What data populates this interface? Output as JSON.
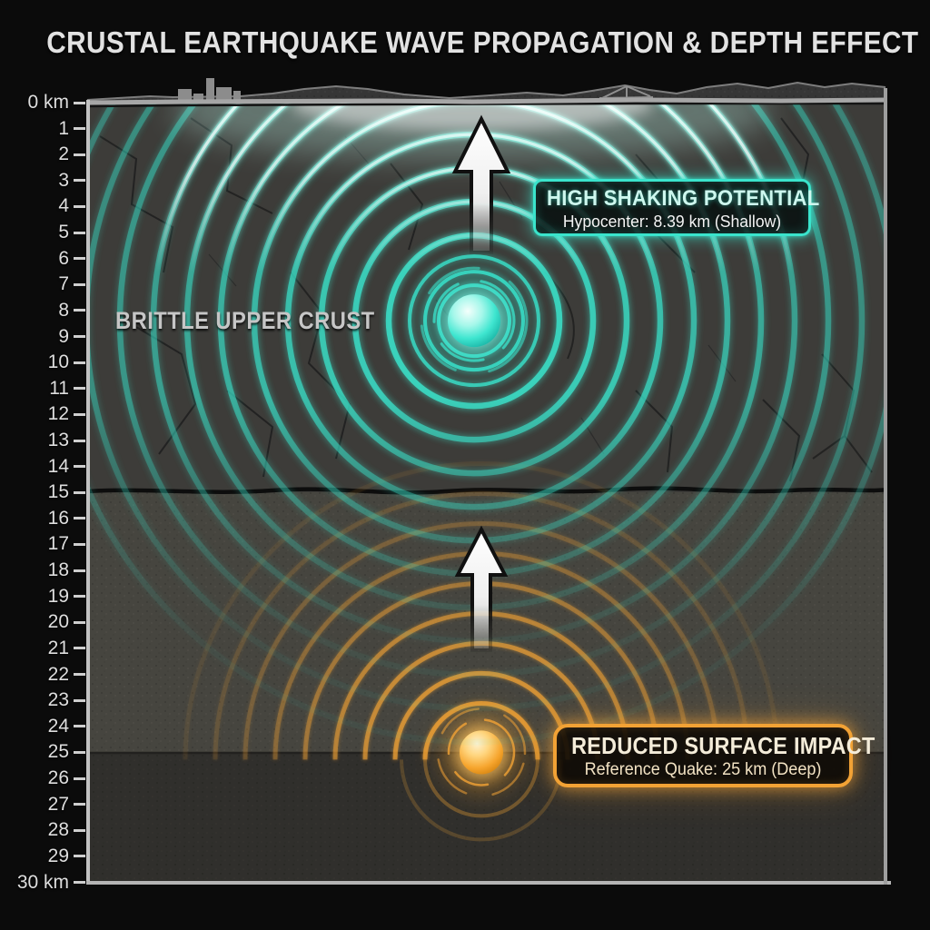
{
  "title": "CRUSTAL EARTHQUAKE WAVE PROPAGATION & DEPTH EFFECT",
  "depth_axis": {
    "unit": "km",
    "min": 0,
    "max": 30,
    "step": 1,
    "first_label": "0 km",
    "last_label": "30 km"
  },
  "layer_label": "BRITTLE UPPER CRUST",
  "shallow_event": {
    "title": "HIGH SHAKING POTENTIAL",
    "subtitle": "Hypocenter: 8.39 km (Shallow)",
    "depth_km": 8.39
  },
  "deep_event": {
    "title": "REDUCED SURFACE IMPACT",
    "subtitle": "Reference Quake: 25 km (Deep)",
    "depth_km": 25
  },
  "boundaries": {
    "brittle_crust_base_km": 15,
    "deep_zone_top_km": 25
  },
  "colors": {
    "background": "#0b0b0b",
    "title_text": "#e2e2e2",
    "axis_text": "#dedede",
    "shallow_accent": "#3ae4cc",
    "deep_accent": "#f2a235",
    "upper_crust": "#3d3c39",
    "mid_crust": "#46453f",
    "deep_crust": "#302f2c",
    "surface_gray": "#a6a6a6",
    "arrow_fill": "#ffffff"
  }
}
